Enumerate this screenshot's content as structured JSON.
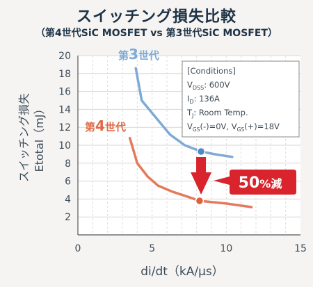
{
  "chart_data": {
    "type": "line",
    "title": "スイッチング損失比較",
    "subtitle": "（第4世代SiC MOSFET vs 第3世代SiC MOSFET）",
    "xlabel": "di/dt（kA/μs）",
    "ylabel": "スイッチング損失 Etotal（mJ）",
    "ylabel_line1": "スイッチング損失",
    "ylabel_line2": "Etotal（mJ）",
    "xlim": [
      0,
      15
    ],
    "ylim": [
      0,
      20
    ],
    "xticks": [
      0,
      5,
      10,
      15
    ],
    "yticks": [
      2,
      4,
      6,
      8,
      10,
      12,
      14,
      16,
      18,
      20
    ],
    "grid": true,
    "series": [
      {
        "name": "第3世代",
        "name_prefix": "第",
        "name_num": "3",
        "name_suffix": "世代",
        "color": "#7eaad6",
        "marker_color": "#4f88c6",
        "x": [
          3.9,
          4.3,
          5.2,
          6.2,
          7.2,
          8.3,
          9.2,
          10.4
        ],
        "y": [
          18.6,
          15.0,
          13.2,
          11.2,
          10.0,
          9.3,
          9.0,
          8.7
        ],
        "highlight_index": 5
      },
      {
        "name": "第4世代",
        "name_prefix": "第",
        "name_num": "4",
        "name_suffix": "世代",
        "color": "#e47a5c",
        "marker_color": "#e0603e",
        "x": [
          3.5,
          4.0,
          4.7,
          5.4,
          6.4,
          7.5,
          8.2,
          10.0,
          11.7
        ],
        "y": [
          10.8,
          8.0,
          6.5,
          5.5,
          4.8,
          4.2,
          3.8,
          3.5,
          3.1
        ],
        "highlight_index": 6
      }
    ],
    "conditions": {
      "header": "[Conditions]",
      "vdss_main": "V",
      "vdss_sub": "DSS",
      "vdss_val": ": 600V",
      "id_main": "I",
      "id_sub": "D",
      "id_val": ": 136A",
      "tj_main": "T",
      "tj_sub": "J",
      "tj_val": ": Room Temp.",
      "vgs1_main": "V",
      "vgs1_sub": "GS",
      "vgs1_val": "(-)=0V, ",
      "vgs2_main": "V",
      "vgs2_sub": "GS",
      "vgs2_val": "(+)=18V"
    },
    "annotation": {
      "value": "50",
      "unit": "%減",
      "color": "#d9232d",
      "arrow_x": 8.3
    }
  }
}
